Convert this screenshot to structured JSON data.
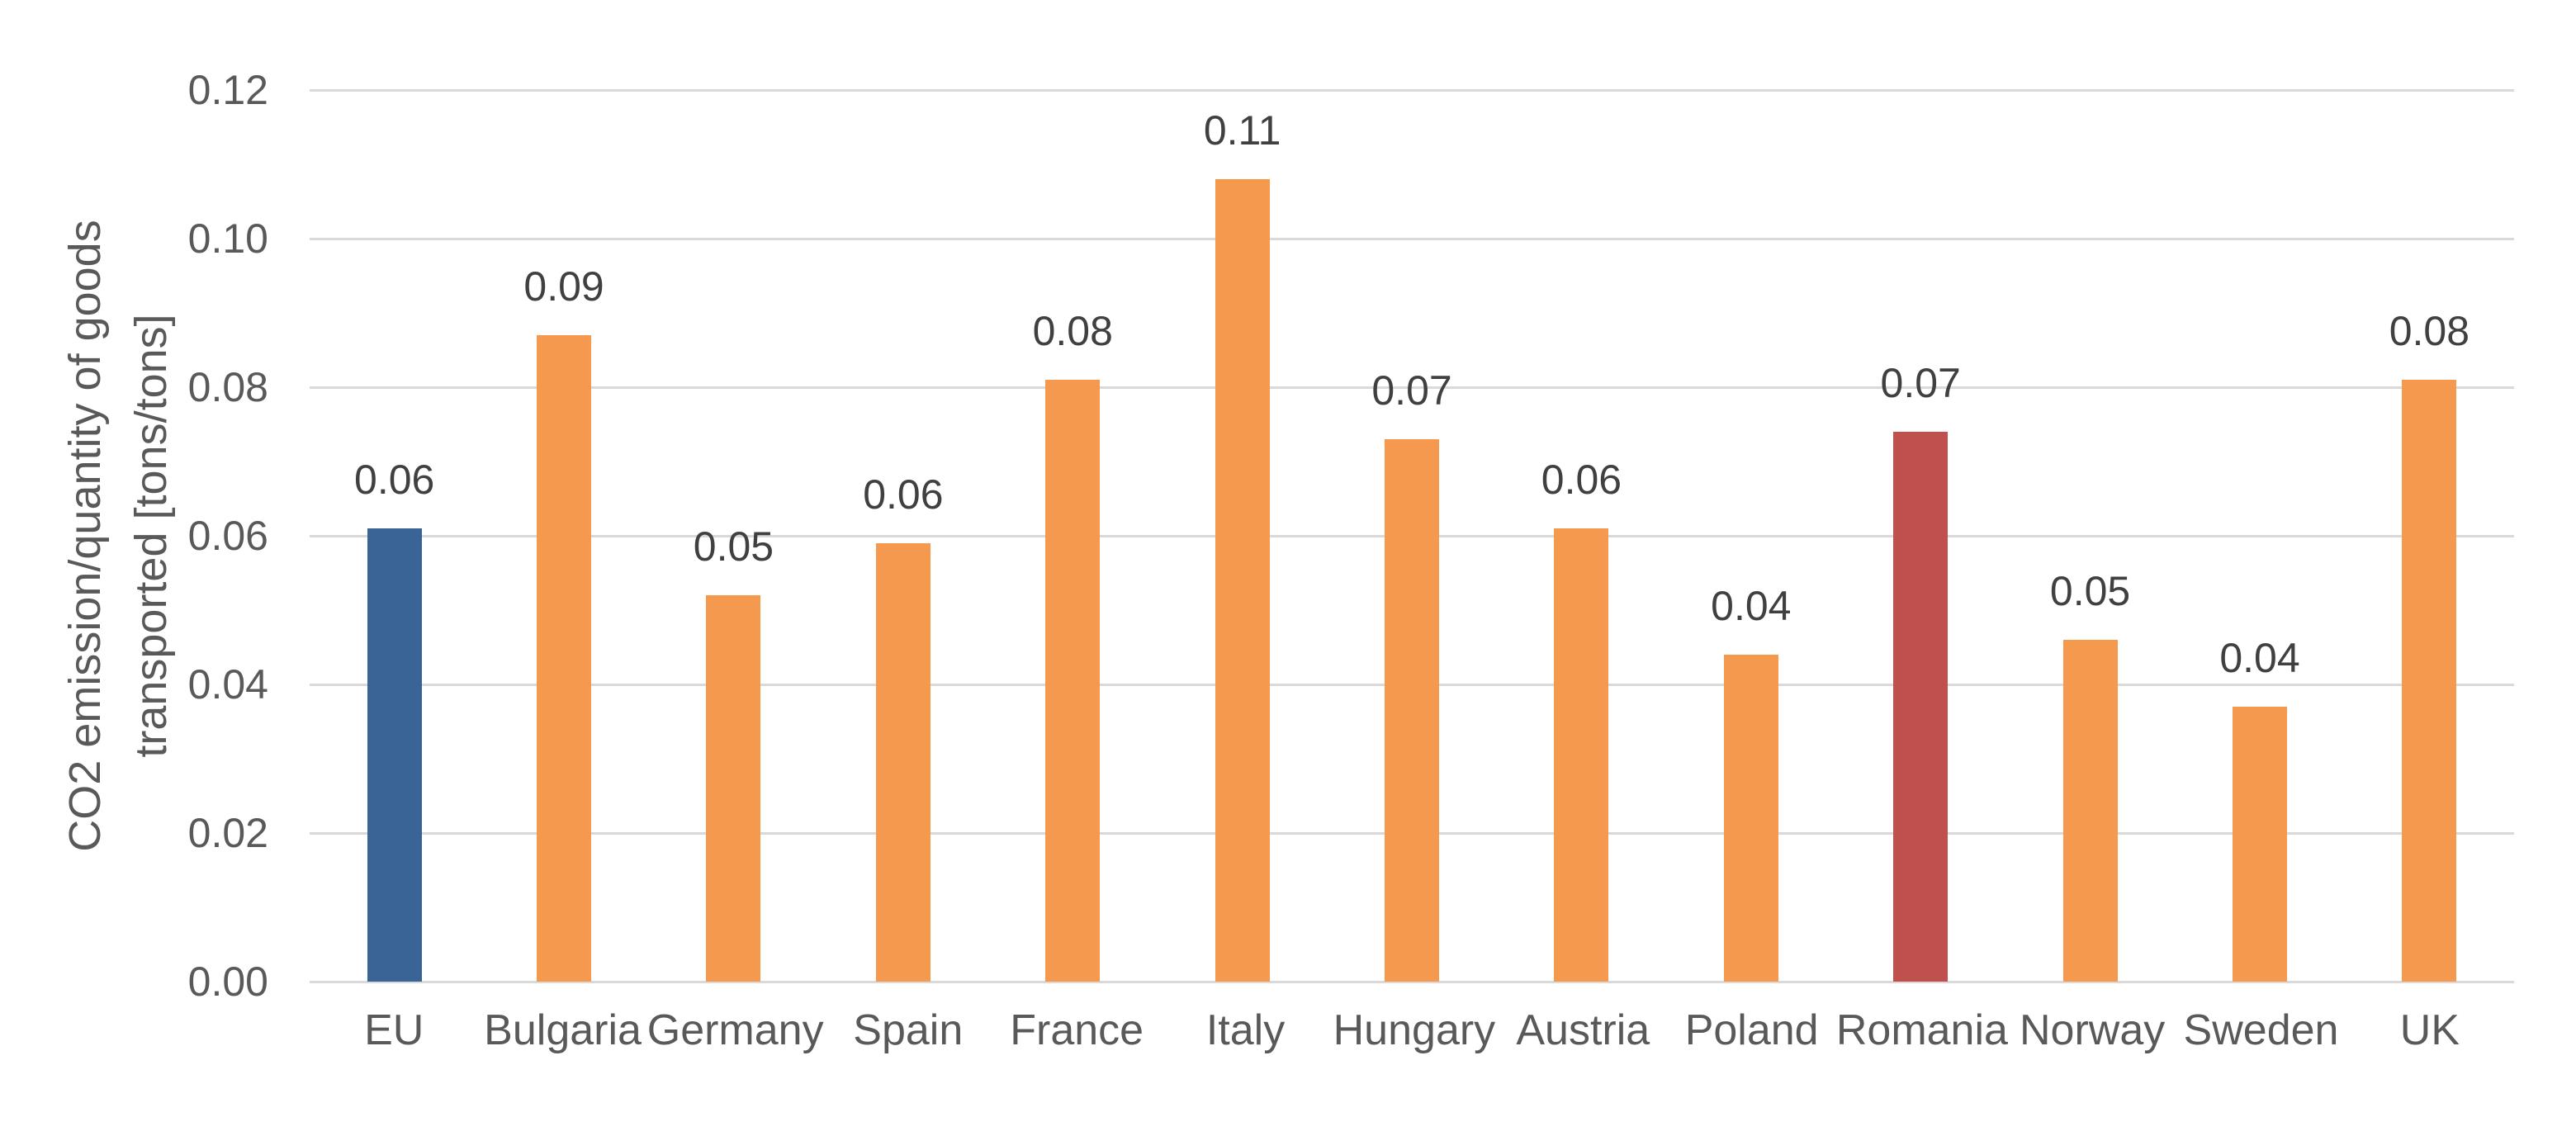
{
  "chart_data": {
    "type": "bar",
    "title": "",
    "ylabel_line1": "CO2 emission/quantity of goods",
    "ylabel_line2": "transported [tons/tons]",
    "categories": [
      "EU",
      "Bulgaria",
      "Germany",
      "Spain",
      "France",
      "Italy",
      "Hungary",
      "Austria",
      "Poland",
      "Romania",
      "Norway",
      "Sweden",
      "UK"
    ],
    "values": [
      0.061,
      0.087,
      0.052,
      0.059,
      0.081,
      0.108,
      0.073,
      0.061,
      0.044,
      0.074,
      0.046,
      0.037,
      0.081
    ],
    "bar_labels": [
      "0.06",
      "0.09",
      "0.05",
      "0.06",
      "0.08",
      "0.11",
      "0.07",
      "0.06",
      "0.04",
      "0.07",
      "0.05",
      "0.04",
      "0.08"
    ],
    "bar_colors": [
      "#3A6396",
      "#F4994E",
      "#F4994E",
      "#F4994E",
      "#F4994E",
      "#F4994E",
      "#F4994E",
      "#F4994E",
      "#F4994E",
      "#C0504D",
      "#F4994E",
      "#F4994E",
      "#F4994E"
    ],
    "ytick_labels": [
      "0.00",
      "0.02",
      "0.04",
      "0.06",
      "0.08",
      "0.10",
      "0.12"
    ],
    "ytick_values": [
      0,
      0.02,
      0.04,
      0.06,
      0.08,
      0.1,
      0.12
    ],
    "ylim": [
      0,
      0.12
    ],
    "grid": true,
    "legend": "none"
  },
  "colors": {
    "default_bar": "#F4994E",
    "eu_bar": "#3A6396",
    "romania_bar": "#C0504D",
    "gridline": "#D9D9D9",
    "tick_label": "#595959",
    "category_label": "#595959",
    "data_label": "#404040",
    "background": "#FFFFFF"
  }
}
